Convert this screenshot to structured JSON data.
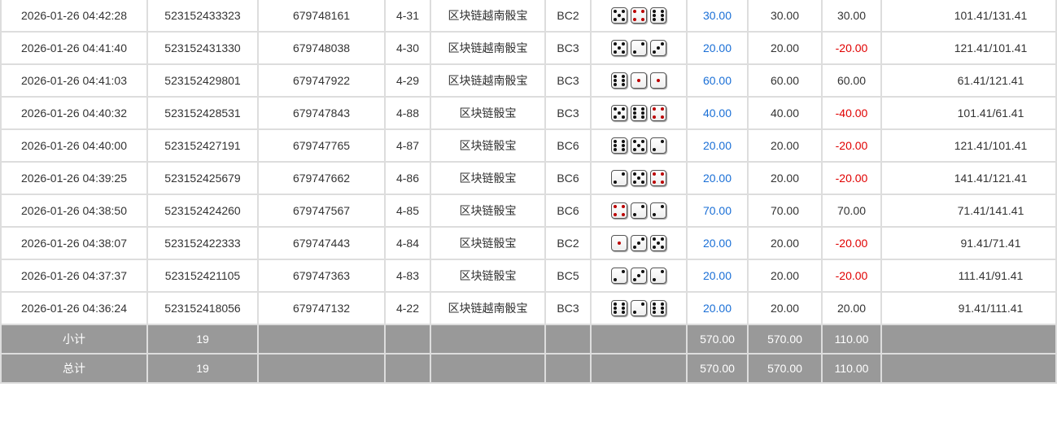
{
  "colors": {
    "blue": "#1a6fd6",
    "red": "#e00000",
    "footer_bg": "#999999"
  },
  "rows": [
    {
      "time": "2026-01-26 04:42:28",
      "order": "523152433323",
      "issue": "679748161",
      "play": "4-31",
      "game": "区块链越南骰宝",
      "room": "BC2",
      "dice": [
        5,
        4,
        6
      ],
      "bet": "30.00",
      "valid": "30.00",
      "win": "30.00",
      "balance": "101.41/131.41"
    },
    {
      "time": "2026-01-26 04:41:40",
      "order": "523152431330",
      "issue": "679748038",
      "play": "4-30",
      "game": "区块链越南骰宝",
      "room": "BC3",
      "dice": [
        5,
        2,
        3
      ],
      "bet": "20.00",
      "valid": "20.00",
      "win": "-20.00",
      "balance": "121.41/101.41"
    },
    {
      "time": "2026-01-26 04:41:03",
      "order": "523152429801",
      "issue": "679747922",
      "play": "4-29",
      "game": "区块链越南骰宝",
      "room": "BC3",
      "dice": [
        6,
        1,
        1
      ],
      "bet": "60.00",
      "valid": "60.00",
      "win": "60.00",
      "balance": "61.41/121.41"
    },
    {
      "time": "2026-01-26 04:40:32",
      "order": "523152428531",
      "issue": "679747843",
      "play": "4-88",
      "game": "区块链骰宝",
      "room": "BC3",
      "dice": [
        5,
        6,
        4
      ],
      "bet": "40.00",
      "valid": "40.00",
      "win": "-40.00",
      "balance": "101.41/61.41"
    },
    {
      "time": "2026-01-26 04:40:00",
      "order": "523152427191",
      "issue": "679747765",
      "play": "4-87",
      "game": "区块链骰宝",
      "room": "BC6",
      "dice": [
        6,
        5,
        2
      ],
      "bet": "20.00",
      "valid": "20.00",
      "win": "-20.00",
      "balance": "121.41/101.41"
    },
    {
      "time": "2026-01-26 04:39:25",
      "order": "523152425679",
      "issue": "679747662",
      "play": "4-86",
      "game": "区块链骰宝",
      "room": "BC6",
      "dice": [
        2,
        5,
        4
      ],
      "bet": "20.00",
      "valid": "20.00",
      "win": "-20.00",
      "balance": "141.41/121.41"
    },
    {
      "time": "2026-01-26 04:38:50",
      "order": "523152424260",
      "issue": "679747567",
      "play": "4-85",
      "game": "区块链骰宝",
      "room": "BC6",
      "dice": [
        4,
        2,
        2
      ],
      "bet": "70.00",
      "valid": "70.00",
      "win": "70.00",
      "balance": "71.41/141.41"
    },
    {
      "time": "2026-01-26 04:38:07",
      "order": "523152422333",
      "issue": "679747443",
      "play": "4-84",
      "game": "区块链骰宝",
      "room": "BC2",
      "dice": [
        1,
        3,
        5
      ],
      "bet": "20.00",
      "valid": "20.00",
      "win": "-20.00",
      "balance": "91.41/71.41"
    },
    {
      "time": "2026-01-26 04:37:37",
      "order": "523152421105",
      "issue": "679747363",
      "play": "4-83",
      "game": "区块链骰宝",
      "room": "BC5",
      "dice": [
        2,
        3,
        2
      ],
      "bet": "20.00",
      "valid": "20.00",
      "win": "-20.00",
      "balance": "111.41/91.41"
    },
    {
      "time": "2026-01-26 04:36:24",
      "order": "523152418056",
      "issue": "679747132",
      "play": "4-22",
      "game": "区块链越南骰宝",
      "room": "BC3",
      "dice": [
        6,
        2,
        6
      ],
      "bet": "20.00",
      "valid": "20.00",
      "win": "20.00",
      "balance": "91.41/111.41"
    }
  ],
  "footer": [
    {
      "label": "小计",
      "count": "19",
      "bet": "570.00",
      "valid": "570.00",
      "win": "110.00"
    },
    {
      "label": "总计",
      "count": "19",
      "bet": "570.00",
      "valid": "570.00",
      "win": "110.00"
    }
  ]
}
